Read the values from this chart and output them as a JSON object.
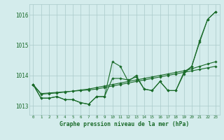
{
  "background_color": "#d4ecec",
  "grid_color": "#aacaca",
  "line_color": "#1a6b2a",
  "x_labels": [
    "0",
    "1",
    "2",
    "3",
    "4",
    "5",
    "6",
    "7",
    "8",
    "9",
    "10",
    "11",
    "12",
    "13",
    "14",
    "15",
    "16",
    "17",
    "18",
    "19",
    "20",
    "21",
    "22",
    "23"
  ],
  "xlabel": "Graphe pression niveau de la mer (hPa)",
  "ylim": [
    1012.7,
    1016.35
  ],
  "yticks": [
    1013,
    1014,
    1015,
    1016
  ],
  "series": [
    [
      1013.7,
      1013.25,
      1013.25,
      1013.3,
      1013.2,
      1013.2,
      1013.1,
      1013.05,
      1013.3,
      1013.3,
      1014.45,
      1014.3,
      1013.8,
      1014.0,
      1013.55,
      1013.5,
      1013.8,
      1013.5,
      1013.5,
      1014.1,
      1014.3,
      1015.15,
      1015.85,
      1016.1
    ],
    [
      1013.7,
      1013.25,
      1013.25,
      1013.3,
      1013.2,
      1013.2,
      1013.1,
      1013.05,
      1013.3,
      1013.3,
      1013.9,
      1013.9,
      1013.85,
      1013.95,
      1013.55,
      1013.5,
      1013.8,
      1013.5,
      1013.5,
      1014.05,
      1014.3,
      1015.1,
      1015.85,
      1016.1
    ],
    [
      1013.7,
      1013.4,
      1013.42,
      1013.44,
      1013.46,
      1013.48,
      1013.5,
      1013.52,
      1013.55,
      1013.6,
      1013.65,
      1013.7,
      1013.75,
      1013.8,
      1013.85,
      1013.9,
      1013.95,
      1014.0,
      1014.05,
      1014.1,
      1014.15,
      1014.2,
      1014.25,
      1014.3
    ],
    [
      1013.7,
      1013.38,
      1013.4,
      1013.42,
      1013.45,
      1013.48,
      1013.52,
      1013.55,
      1013.6,
      1013.65,
      1013.7,
      1013.75,
      1013.8,
      1013.85,
      1013.9,
      1013.95,
      1014.0,
      1014.05,
      1014.1,
      1014.15,
      1014.22,
      1014.3,
      1014.38,
      1014.45
    ]
  ]
}
